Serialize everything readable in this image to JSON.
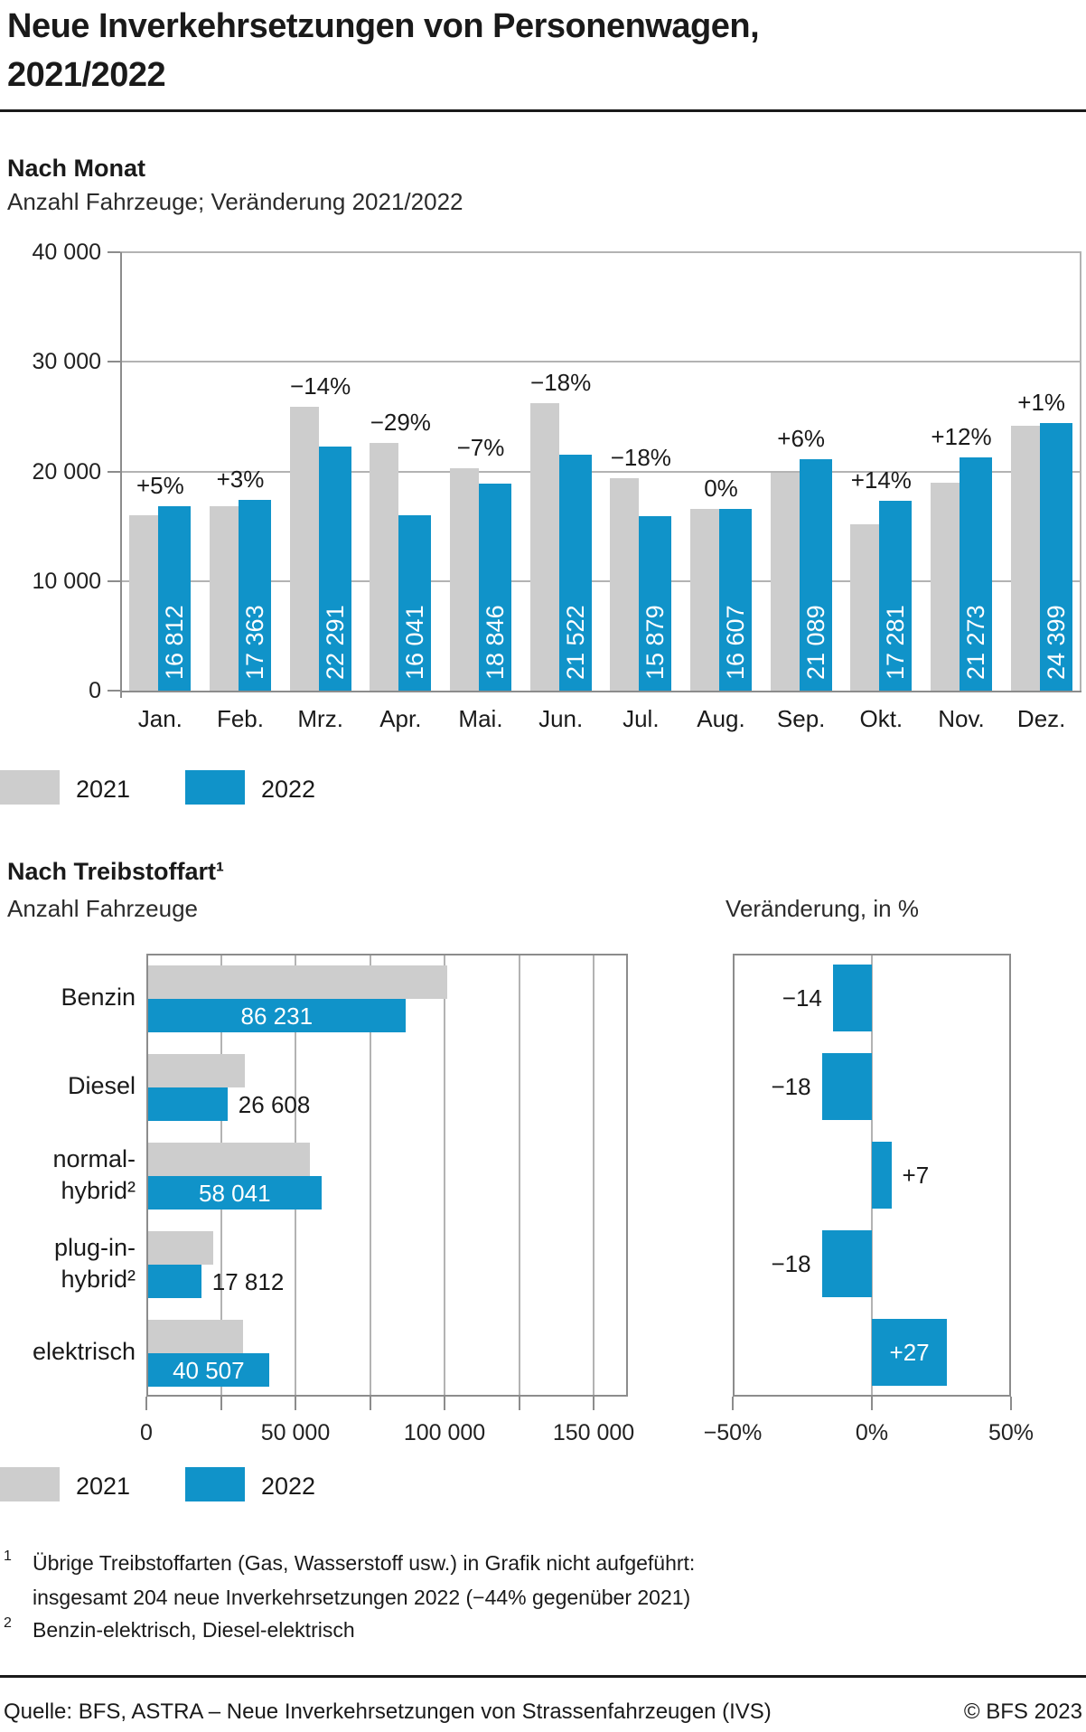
{
  "title": {
    "line1": "Neue Inverkehrsetzungen von Personenwagen,",
    "line2": "2021/2022"
  },
  "section_month": {
    "heading": "Nach Monat",
    "subtitle": "Anzahl Fahrzeuge; Veränderung 2021/2022"
  },
  "section_fuel": {
    "heading": "Nach Treibstoffart¹",
    "subtitle_left": "Anzahl Fahrzeuge",
    "subtitle_right": "Veränderung, in %"
  },
  "legend": {
    "label_2021": "2021",
    "label_2022": "2022"
  },
  "footnotes": {
    "m1": "1",
    "f1a": "Übrige Treibstoffarten (Gas, Wasserstoff usw.) in Grafik nicht aufgeführt:",
    "f1b": "insgesamt 204 neue Inverkehrsetzungen 2022 (−44% gegenüber 2021)",
    "m2": "2",
    "f2a": "Benzin-elektrisch, Diesel-elektrisch"
  },
  "footer": {
    "source": "Quelle: BFS, ASTRA – Neue Inverkehrsetzungen von Strassenfahrzeugen (IVS)",
    "copyright": "© BFS 2023"
  },
  "colors": {
    "accent_blue": "#1093c9",
    "bar_gray": "#cdcdcd",
    "grid": "#b3b3b3",
    "axis": "#8c8c8c",
    "text": "#1a1a1a",
    "value_on_blue": "#ffffff"
  },
  "chart_data": [
    {
      "id": "by-month",
      "type": "bar",
      "title": "Nach Monat",
      "subtitle": "Anzahl Fahrzeuge; Veränderung 2021/2022",
      "categories": [
        "Jan.",
        "Feb.",
        "Mrz.",
        "Apr.",
        "Mai.",
        "Jun.",
        "Jul.",
        "Aug.",
        "Sep.",
        "Okt.",
        "Nov.",
        "Dez."
      ],
      "series": [
        {
          "name": "2021",
          "estimated_from_bars": true,
          "values": [
            16011,
            16857,
            25921,
            22593,
            20265,
            26246,
            19365,
            16607,
            19895,
            15159,
            18994,
            24157
          ]
        },
        {
          "name": "2022",
          "values": [
            16812,
            17363,
            22291,
            16041,
            18846,
            21522,
            15879,
            16607,
            21089,
            17281,
            21273,
            24399
          ],
          "value_labels": [
            "16 812",
            "17 363",
            "22 291",
            "16 041",
            "18 846",
            "21 522",
            "15 879",
            "16 607",
            "21 089",
            "17 281",
            "21 273",
            "24 399"
          ]
        }
      ],
      "change_labels": [
        "+5%",
        "+3%",
        "−14%",
        "−29%",
        "−7%",
        "−18%",
        "−18%",
        "0%",
        "+6%",
        "+14%",
        "+12%",
        "+1%"
      ],
      "ylim": [
        0,
        40000
      ],
      "yticks": [
        {
          "value": 0,
          "label": "0"
        },
        {
          "value": 10000,
          "label": "10 000"
        },
        {
          "value": 20000,
          "label": "20 000"
        },
        {
          "value": 30000,
          "label": "30 000"
        },
        {
          "value": 40000,
          "label": "40 000"
        }
      ],
      "grid": true,
      "legend_position": "bottom"
    },
    {
      "id": "by-fuel-amount",
      "type": "bar-horizontal",
      "title": "Nach Treibstoffart",
      "xlabel": "Anzahl Fahrzeuge",
      "categories": [
        {
          "lines": [
            "Benzin"
          ]
        },
        {
          "lines": [
            "Diesel"
          ]
        },
        {
          "lines": [
            "normal-",
            "hybrid²"
          ]
        },
        {
          "lines": [
            "plug-in-",
            "hybrid²"
          ]
        },
        {
          "lines": [
            "elektrisch"
          ]
        }
      ],
      "series": [
        {
          "name": "2021",
          "estimated_from_bars": true,
          "values": [
            100268,
            32449,
            54244,
            21722,
            31895
          ]
        },
        {
          "name": "2022",
          "values": [
            86231,
            26608,
            58041,
            17812,
            40507
          ],
          "value_labels": [
            "86 231",
            "26 608",
            "58 041",
            "17 812",
            "40 507"
          ],
          "label_inside": [
            true,
            false,
            true,
            false,
            true
          ]
        }
      ],
      "xlim": [
        0,
        150000
      ],
      "gridline_step": 25000,
      "xticks": [
        {
          "value": 0,
          "label": "0"
        },
        {
          "value": 50000,
          "label": "50 000"
        },
        {
          "value": 100000,
          "label": "100 000"
        },
        {
          "value": 150000,
          "label": "150 000"
        }
      ],
      "grid": true,
      "legend_position": "bottom"
    },
    {
      "id": "by-fuel-change",
      "type": "bar-horizontal",
      "title": "Veränderung, in %",
      "categories": [
        "Benzin",
        "Diesel",
        "normal-hybrid",
        "plug-in-hybrid",
        "elektrisch"
      ],
      "values": [
        -14,
        -18,
        7,
        -18,
        27
      ],
      "value_labels": [
        "−14",
        "−18",
        "+7",
        "−18",
        "+27"
      ],
      "label_placement": [
        "left",
        "left",
        "right",
        "left",
        "inside"
      ],
      "xlim": [
        -50,
        50
      ],
      "xticks": [
        {
          "value": -50,
          "label": "−50%"
        },
        {
          "value": 0,
          "label": "0%"
        },
        {
          "value": 50,
          "label": "50%"
        }
      ],
      "grid": false
    }
  ]
}
